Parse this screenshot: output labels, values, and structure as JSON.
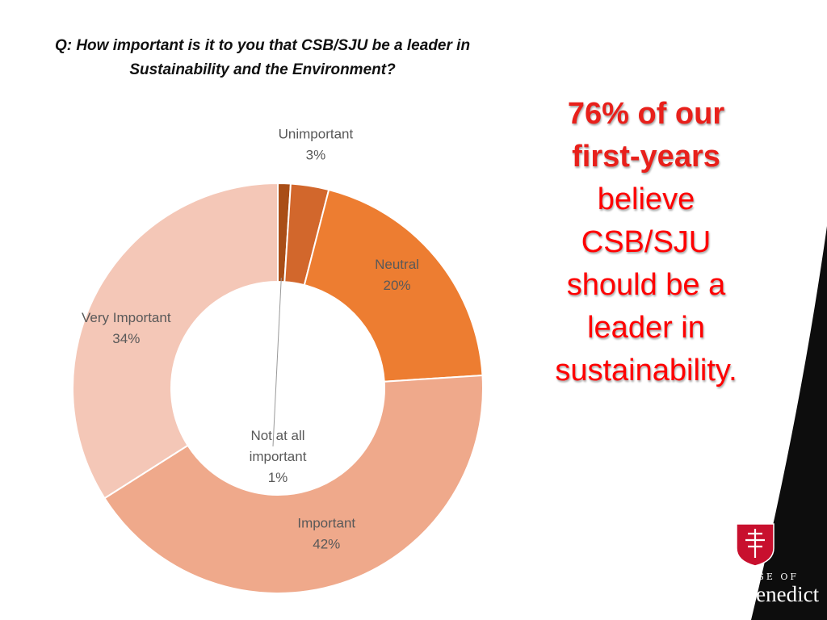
{
  "question": "Q: How important is it to you that CSB/SJU be a leader in Sustainability and the Environment?",
  "callout": {
    "line1": "76% of our",
    "line2": "first-years",
    "line3": "believe",
    "line4": "CSB/SJU",
    "line5": "should be a",
    "line6": "leader in",
    "line7": "sustainability."
  },
  "logo": {
    "small": "COLLEGE OF",
    "big": "Saint Benedict"
  },
  "colors": {
    "accent": "#ff0000",
    "black": "#111111"
  },
  "chart_data": {
    "type": "pie",
    "variant": "donut",
    "title": "",
    "categories": [
      "Not at all important",
      "Unimportant",
      "Neutral",
      "Important",
      "Very Important"
    ],
    "values": [
      1,
      3,
      20,
      42,
      34
    ],
    "value_labels": [
      "1%",
      "3%",
      "20%",
      "42%",
      "34%"
    ],
    "colors": [
      "#a94e17",
      "#d2672c",
      "#ed7d31",
      "#efa98b",
      "#f4c7b7"
    ],
    "legend": "none"
  }
}
